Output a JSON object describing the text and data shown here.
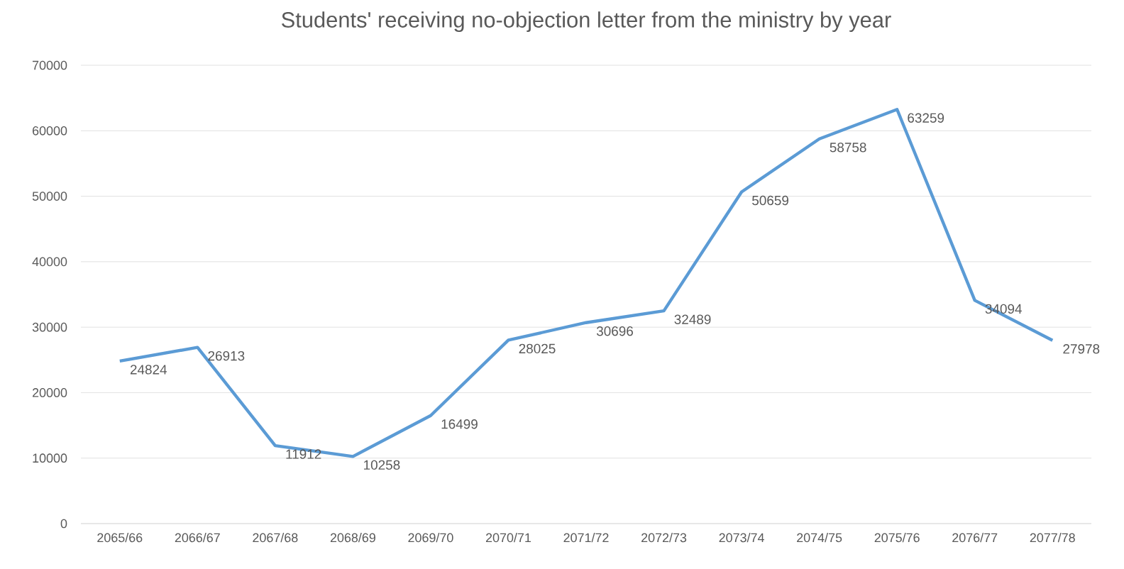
{
  "chart_data": {
    "type": "line",
    "title": "Students' receiving no-objection letter from the ministry by year",
    "categories": [
      "2065/66",
      "2066/67",
      "2067/68",
      "2068/69",
      "2069/70",
      "2070/71",
      "2071/72",
      "2072/73",
      "2073/74",
      "2074/75",
      "2075/76",
      "2076/77",
      "2077/78"
    ],
    "series": [
      {
        "color": "#5b9bd5",
        "values": [
          24824,
          26913,
          11912,
          10258,
          16499,
          28025,
          30696,
          32489,
          50659,
          58758,
          63259,
          34094,
          27978
        ]
      }
    ],
    "ylim": [
      0,
      70000
    ],
    "yticks": [
      0,
      10000,
      20000,
      30000,
      40000,
      50000,
      60000,
      70000
    ],
    "grid": "y",
    "data_labels": true,
    "marker": "none",
    "line_style": "solid"
  }
}
